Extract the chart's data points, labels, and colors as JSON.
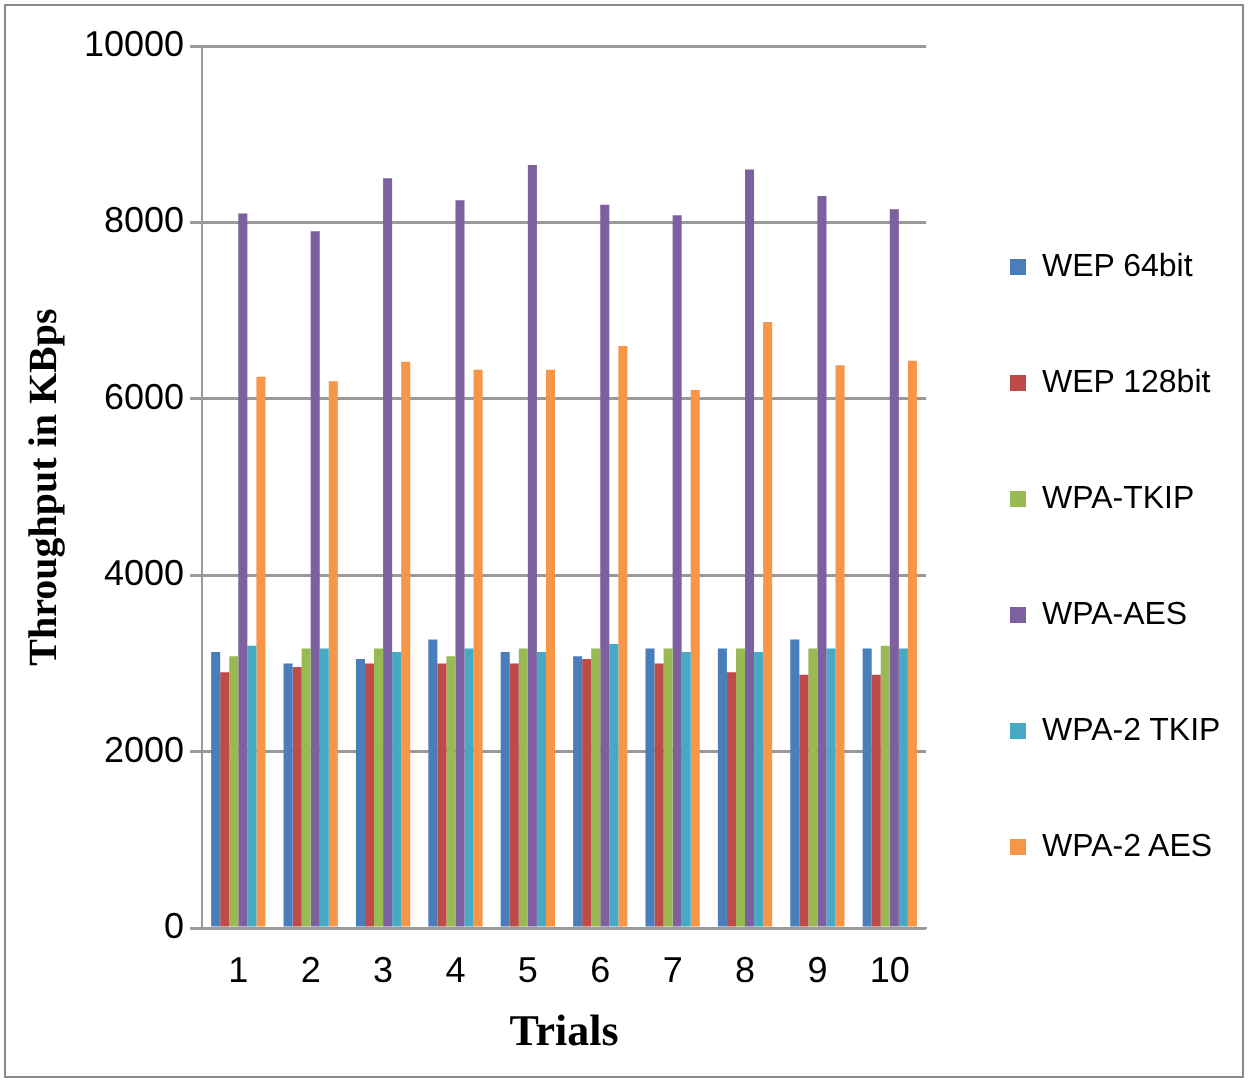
{
  "chart_data": {
    "type": "bar",
    "xlabel": "Trials",
    "ylabel": "Throughput in KBps",
    "categories": [
      "1",
      "2",
      "3",
      "4",
      "5",
      "6",
      "7",
      "8",
      "9",
      "10"
    ],
    "series": [
      {
        "name": "WEP 64bit",
        "color": "#4a7ebb",
        "values": [
          3130,
          3000,
          3050,
          3270,
          3130,
          3080,
          3170,
          3170,
          3270,
          3170
        ]
      },
      {
        "name": "WEP 128bit",
        "color": "#be4b48",
        "values": [
          2900,
          2960,
          3000,
          3000,
          3000,
          3050,
          3000,
          2900,
          2870,
          2870
        ]
      },
      {
        "name": "WPA-TKIP",
        "color": "#98b954",
        "values": [
          3080,
          3170,
          3170,
          3080,
          3170,
          3170,
          3170,
          3170,
          3170,
          3200
        ]
      },
      {
        "name": "WPA-AES",
        "color": "#7d60a0",
        "values": [
          8100,
          7900,
          8500,
          8250,
          8650,
          8200,
          8080,
          8600,
          8300,
          8150
        ]
      },
      {
        "name": "WPA-2 TKIP",
        "color": "#46aac5",
        "values": [
          3200,
          3170,
          3130,
          3170,
          3130,
          3220,
          3130,
          3130,
          3170,
          3170
        ]
      },
      {
        "name": "WPA-2 AES",
        "color": "#f79646",
        "values": [
          6250,
          6200,
          6420,
          6330,
          6330,
          6600,
          6100,
          6870,
          6380,
          6430
        ]
      }
    ],
    "ylim": [
      0,
      10000
    ],
    "yticks": [
      0,
      2000,
      4000,
      6000,
      8000,
      10000
    ],
    "grid": "y",
    "legend": "right"
  }
}
